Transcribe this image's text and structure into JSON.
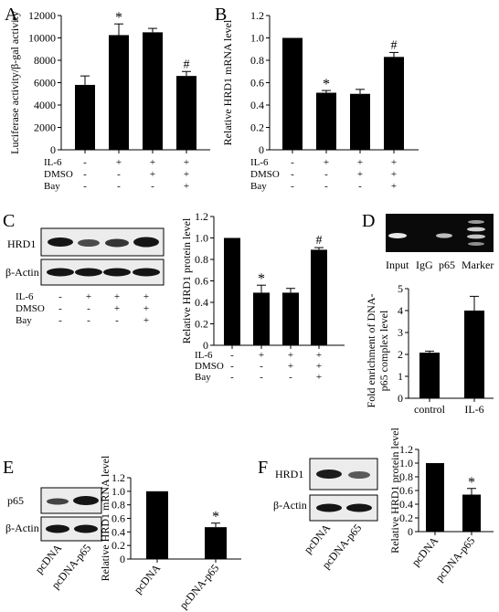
{
  "panel_letters": [
    "A",
    "B",
    "C",
    "D",
    "E",
    "F"
  ],
  "treatment_rows": {
    "labels": [
      "IL-6",
      "DMSO",
      "Bay"
    ],
    "signs": [
      [
        "-",
        "+",
        "+",
        "+"
      ],
      [
        "-",
        "-",
        "+",
        "+"
      ],
      [
        "-",
        "-",
        "-",
        "+"
      ]
    ]
  },
  "blots": {
    "C": {
      "rows": [
        "HRD1",
        "β-Actin"
      ]
    },
    "E": {
      "rows": [
        "p65",
        "β-Actin"
      ],
      "lanes": [
        "pcDNA",
        "pcDNA-p65"
      ]
    },
    "F": {
      "rows": [
        "HRD1",
        "β-Actin"
      ],
      "lanes": [
        "pcDNA",
        "pcDNA-p65"
      ]
    }
  },
  "gel_D": {
    "lanes": [
      "Input",
      "IgG",
      "p65",
      "Marker"
    ]
  },
  "chart_data": [
    {
      "panel": "A",
      "type": "bar",
      "ylabel": "Luciferase activity/β-gal activity",
      "ylim": [
        0,
        12000
      ],
      "yticks": [
        0,
        2000,
        4000,
        6000,
        8000,
        10000,
        12000
      ],
      "values": [
        5800,
        10250,
        10500,
        6600
      ],
      "errors": [
        800,
        1000,
        350,
        400
      ],
      "annotations": [
        "",
        "*",
        "",
        "#"
      ],
      "color": "#000000"
    },
    {
      "panel": "B",
      "type": "bar",
      "ylabel": "Relative HRD1 mRNA level",
      "ylim": [
        0,
        1.2
      ],
      "yticks": [
        "0",
        "0.2",
        "0.4",
        "0.6",
        "0.8",
        "1.0",
        "1.2"
      ],
      "values": [
        1.0,
        0.51,
        0.5,
        0.83
      ],
      "errors": [
        0,
        0.02,
        0.04,
        0.04
      ],
      "annotations": [
        "",
        "*",
        "",
        "#"
      ],
      "color": "#000000"
    },
    {
      "panel": "C",
      "type": "bar",
      "ylabel": "Relative HRD1 protein level",
      "ylim": [
        0,
        1.2
      ],
      "yticks": [
        "0",
        "0.2",
        "0.4",
        "0.6",
        "0.8",
        "1.0",
        "1.2"
      ],
      "values": [
        1.0,
        0.49,
        0.49,
        0.89
      ],
      "errors": [
        0,
        0.07,
        0.04,
        0.02
      ],
      "annotations": [
        "",
        "*",
        "",
        "#"
      ],
      "color": "#000000"
    },
    {
      "panel": "D",
      "type": "bar",
      "ylabel": "Fold enrichment of DNA-p65 complex level",
      "ylim": [
        0,
        5
      ],
      "yticks": [
        0,
        1,
        2,
        3,
        4,
        5
      ],
      "categories": [
        "control",
        "IL-6"
      ],
      "values": [
        2.08,
        4.0
      ],
      "errors": [
        0.07,
        0.65
      ],
      "annotations": [
        "",
        ""
      ],
      "color": "#000000"
    },
    {
      "panel": "E",
      "type": "bar",
      "ylabel": "Relative HRD1 mRNA level",
      "ylim": [
        0,
        1.2
      ],
      "yticks": [
        "0",
        "0.2",
        "0.4",
        "0.6",
        "0.8",
        "1.0",
        "1.2"
      ],
      "categories": [
        "pcDNA",
        "pcDNA-p65"
      ],
      "values": [
        1.0,
        0.47
      ],
      "errors": [
        0,
        0.06
      ],
      "annotations": [
        "",
        "*"
      ],
      "color": "#000000"
    },
    {
      "panel": "F",
      "type": "bar",
      "ylabel": "Relative HRD1 protein level",
      "ylim": [
        0,
        1.2
      ],
      "yticks": [
        "0",
        "0.2",
        "0.4",
        "0.6",
        "0.8",
        "1.0",
        "1.2"
      ],
      "categories": [
        "pcDNA",
        "pcDNA-p65"
      ],
      "values": [
        1.0,
        0.54
      ],
      "errors": [
        0,
        0.09
      ],
      "annotations": [
        "",
        "*"
      ],
      "color": "#000000"
    }
  ]
}
